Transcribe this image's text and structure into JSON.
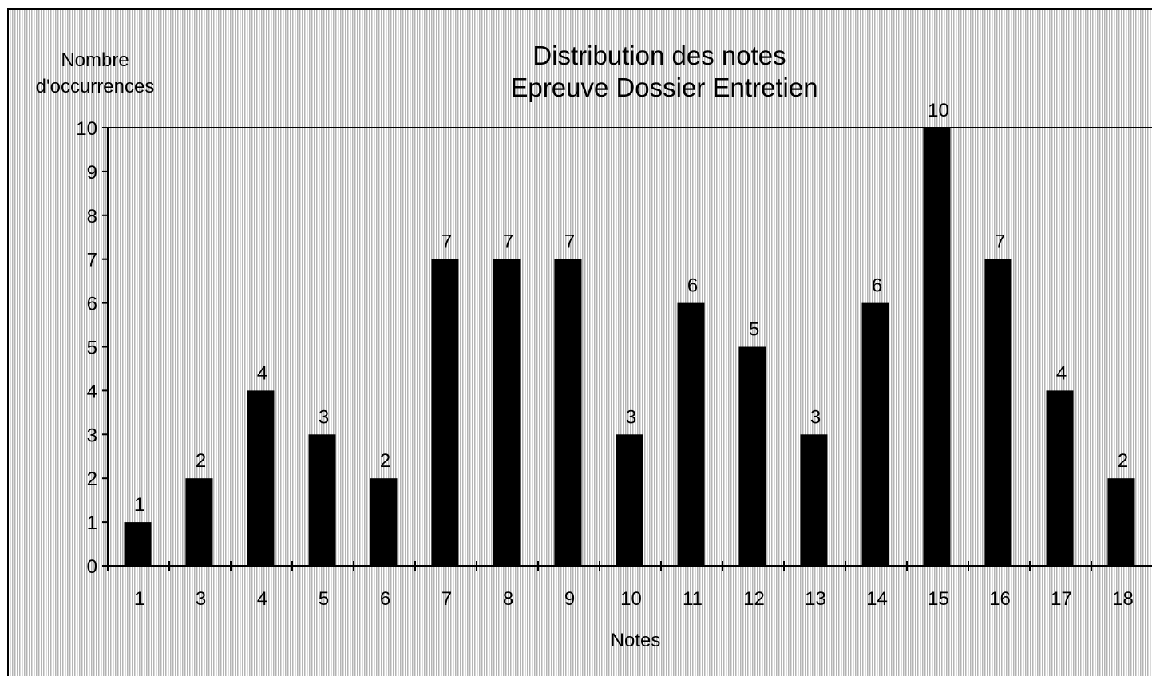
{
  "chart_data": {
    "type": "bar",
    "title_lines": [
      "Distribution des notes",
      "Epreuve Dossier Entretien"
    ],
    "ylabel_lines": [
      "Nombre",
      "d'occurrences"
    ],
    "xlabel": "Notes",
    "categories": [
      "1",
      "3",
      "4",
      "5",
      "6",
      "7",
      "8",
      "9",
      "10",
      "11",
      "12",
      "13",
      "14",
      "15",
      "16",
      "17",
      "18"
    ],
    "values": [
      1,
      2,
      4,
      3,
      2,
      7,
      7,
      7,
      3,
      6,
      5,
      3,
      6,
      10,
      7,
      4,
      2
    ],
    "ylim": [
      0,
      10
    ],
    "yticks": [
      "0",
      "1",
      "2",
      "3",
      "4",
      "5",
      "6",
      "7",
      "8",
      "9",
      "10"
    ],
    "data_labels": true,
    "grid": false,
    "legend": "none",
    "colors": {
      "bar": "#000000",
      "background_pattern": "#b4b4b4",
      "text": "#000000"
    }
  }
}
